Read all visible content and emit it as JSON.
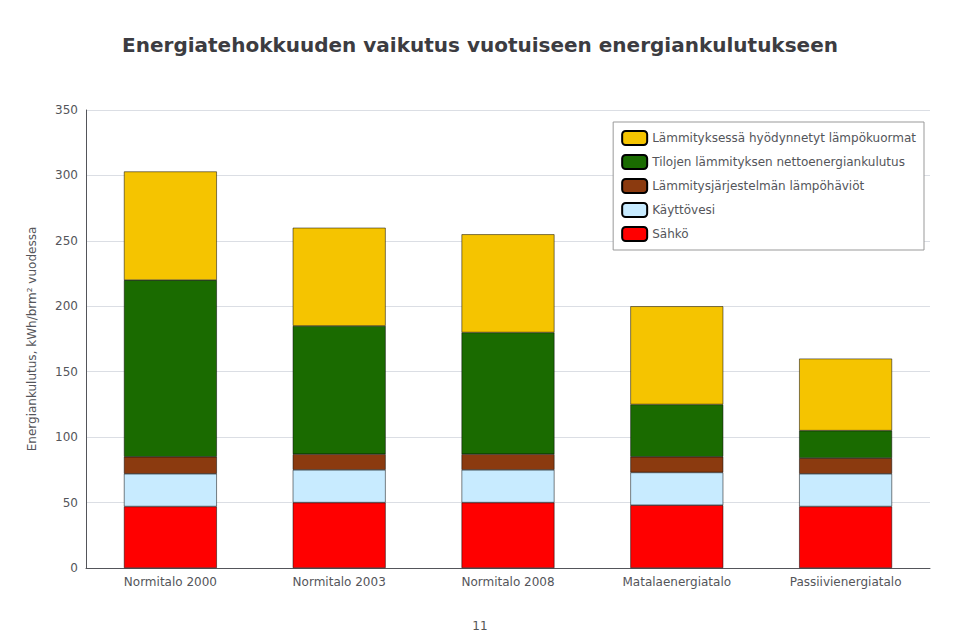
{
  "chart_data": {
    "type": "bar",
    "stacked": true,
    "title": "Energiatehokkuuden vaikutus vuotuiseen energiankulutukseen",
    "ylabel": "Energiankulutus, kWh/brm² vuodessa",
    "categories": [
      "Normitalo 2000",
      "Normitalo 2003",
      "Normitalo 2008",
      "Matalaenergiatalo",
      "Passiivienergiatalo"
    ],
    "series": [
      {
        "name": "Sähkö",
        "color": "#FF0000",
        "values": [
          47,
          50,
          50,
          48,
          47
        ]
      },
      {
        "name": "Käyttövesi",
        "color": "#C8EBFF",
        "values": [
          25,
          25,
          25,
          25,
          25
        ]
      },
      {
        "name": "Lämmitysjärjestelmän lämpöhäviöt",
        "color": "#8B3A0F",
        "values": [
          13,
          12,
          12,
          12,
          12
        ]
      },
      {
        "name": "Tilojen lämmityksen nettoenergiankulutus",
        "color": "#1A6B00",
        "values": [
          135,
          98,
          93,
          40,
          21
        ]
      },
      {
        "name": "Lämmityksessä hyödynnetyt lämpökuormat",
        "color": "#F5C400",
        "values": [
          83,
          75,
          75,
          75,
          55
        ]
      }
    ],
    "ylim": [
      0,
      350
    ],
    "yticks": [
      0,
      50,
      100,
      150,
      200,
      250,
      300,
      350
    ],
    "grid": true,
    "legend": "upper right",
    "annotations": [
      "11"
    ]
  }
}
